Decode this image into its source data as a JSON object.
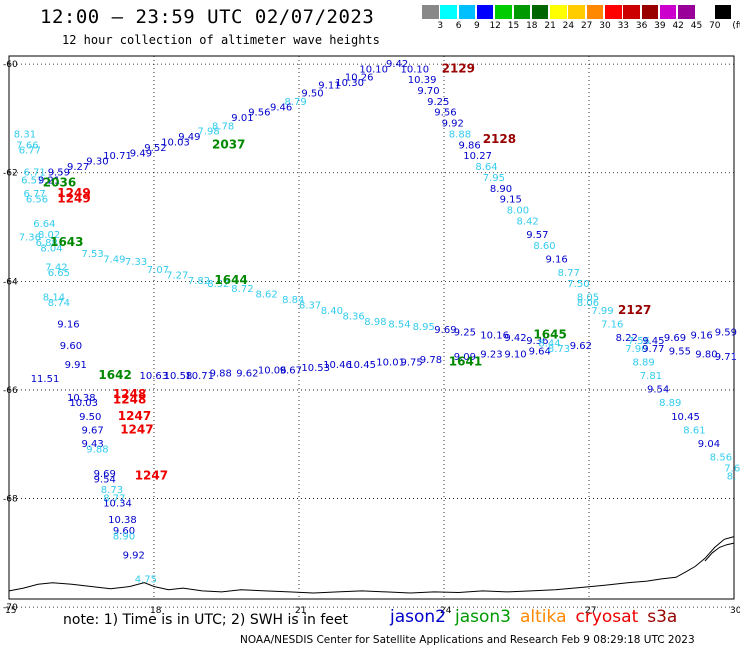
{
  "header": {
    "title": "12:00 – 23:59 UTC 02/07/2023",
    "subtitle": "12 hour collection of altimeter wave heights"
  },
  "colorbar": {
    "unit": "(ft)",
    "colors": [
      "#888888",
      "#00ffff",
      "#00bfff",
      "#0000ff",
      "#00cc00",
      "#009900",
      "#006600",
      "#ffff00",
      "#ffcc00",
      "#ff8800",
      "#ff0000",
      "#cc0000",
      "#990000",
      "#cc00cc",
      "#990099",
      "#ffffff",
      "#000000"
    ],
    "labels": [
      "3",
      "6",
      "9",
      "12",
      "15",
      "18",
      "21",
      "24",
      "27",
      "30",
      "33",
      "36",
      "39",
      "42",
      "45",
      "70"
    ]
  },
  "map": {
    "lat_ticks": [
      "-60",
      "-62",
      "-64",
      "-66",
      "-68",
      "-70"
    ],
    "lon_ticks": [
      "15",
      "18",
      "21",
      "24",
      "27",
      "30"
    ]
  },
  "observations": [
    {
      "t": "9.42",
      "c": "#0000cc",
      "lon": 22.8,
      "lat": -60.05
    },
    {
      "t": "10.10",
      "c": "#0000cc",
      "lon": 22.25,
      "lat": -60.15
    },
    {
      "t": "10.10",
      "c": "#0000cc",
      "lon": 23.1,
      "lat": -60.15
    },
    {
      "t": "10.26",
      "c": "#0000cc",
      "lon": 21.95,
      "lat": -60.3
    },
    {
      "t": "10.39",
      "c": "#0000cc",
      "lon": 23.25,
      "lat": -60.35
    },
    {
      "t": "10.30",
      "c": "#0000cc",
      "lon": 21.75,
      "lat": -60.4
    },
    {
      "t": "9.11",
      "c": "#0000cc",
      "lon": 21.4,
      "lat": -60.45
    },
    {
      "t": "9.70",
      "c": "#0000cc",
      "lon": 23.45,
      "lat": -60.55
    },
    {
      "t": "9.50",
      "c": "#0000cc",
      "lon": 21.05,
      "lat": -60.6
    },
    {
      "t": "8.79",
      "c": "#33ccee",
      "lon": 20.7,
      "lat": -60.75
    },
    {
      "t": "9.25",
      "c": "#0000cc",
      "lon": 23.65,
      "lat": -60.75
    },
    {
      "t": "9.46",
      "c": "#0000cc",
      "lon": 20.4,
      "lat": -60.85
    },
    {
      "t": "9.56",
      "c": "#0000cc",
      "lon": 19.95,
      "lat": -60.95
    },
    {
      "t": "9.56",
      "c": "#0000cc",
      "lon": 23.8,
      "lat": -60.95
    },
    {
      "t": "9.01",
      "c": "#0000cc",
      "lon": 19.6,
      "lat": -61.05
    },
    {
      "t": "9.92",
      "c": "#0000cc",
      "lon": 23.95,
      "lat": -61.15
    },
    {
      "t": "8.78",
      "c": "#33ccee",
      "lon": 19.2,
      "lat": -61.2
    },
    {
      "t": "7.98",
      "c": "#33ccee",
      "lon": 18.9,
      "lat": -61.3
    },
    {
      "t": "8.88",
      "c": "#33ccee",
      "lon": 24.1,
      "lat": -61.35
    },
    {
      "t": "9.49",
      "c": "#0000cc",
      "lon": 18.5,
      "lat": -61.4
    },
    {
      "t": "10.03",
      "c": "#0000cc",
      "lon": 18.15,
      "lat": -61.5
    },
    {
      "t": "9.86",
      "c": "#0000cc",
      "lon": 24.3,
      "lat": -61.55
    },
    {
      "t": "9.52",
      "c": "#0000cc",
      "lon": 17.8,
      "lat": -61.6
    },
    {
      "t": "9.49",
      "c": "#0000cc",
      "lon": 17.5,
      "lat": -61.7
    },
    {
      "t": "10.27",
      "c": "#0000cc",
      "lon": 24.4,
      "lat": -61.75
    },
    {
      "t": "10.71",
      "c": "#0000cc",
      "lon": 16.95,
      "lat": -61.75
    },
    {
      "t": "9.30",
      "c": "#0000cc",
      "lon": 16.6,
      "lat": -61.85
    },
    {
      "t": "8.64",
      "c": "#33ccee",
      "lon": 24.65,
      "lat": -61.95
    },
    {
      "t": "9.27",
      "c": "#0000cc",
      "lon": 16.2,
      "lat": -61.95
    },
    {
      "t": "9.59",
      "c": "#0000cc",
      "lon": 15.8,
      "lat": -62.05
    },
    {
      "t": "7.95",
      "c": "#33ccee",
      "lon": 24.8,
      "lat": -62.15
    },
    {
      "t": "8.90",
      "c": "#0000cc",
      "lon": 24.95,
      "lat": -62.35
    },
    {
      "t": "9.15",
      "c": "#0000cc",
      "lon": 25.15,
      "lat": -62.55
    },
    {
      "t": "8.00",
      "c": "#33ccee",
      "lon": 25.3,
      "lat": -62.75
    },
    {
      "t": "8.42",
      "c": "#33ccee",
      "lon": 25.5,
      "lat": -62.95
    },
    {
      "t": "9.57",
      "c": "#0000cc",
      "lon": 25.7,
      "lat": -63.2
    },
    {
      "t": "8.60",
      "c": "#33ccee",
      "lon": 25.85,
      "lat": -63.4
    },
    {
      "t": "9.16",
      "c": "#0000cc",
      "lon": 26.1,
      "lat": -63.65
    },
    {
      "t": "8.77",
      "c": "#33ccee",
      "lon": 26.35,
      "lat": -63.9
    },
    {
      "t": "7.50",
      "c": "#33ccee",
      "lon": 26.55,
      "lat": -64.1
    },
    {
      "t": "8.05",
      "c": "#33ccee",
      "lon": 26.75,
      "lat": -64.35
    },
    {
      "t": "8.06",
      "c": "#33ccee",
      "lon": 26.75,
      "lat": -64.45
    },
    {
      "t": "7.99",
      "c": "#33ccee",
      "lon": 27.05,
      "lat": -64.6
    },
    {
      "t": "7.16",
      "c": "#33ccee",
      "lon": 27.25,
      "lat": -64.85
    },
    {
      "t": "8.22",
      "c": "#0000cc",
      "lon": 27.55,
      "lat": -65.1
    },
    {
      "t": "7.56",
      "c": "#33ccee",
      "lon": 27.8,
      "lat": -65.15
    },
    {
      "t": "7.90",
      "c": "#33ccee",
      "lon": 27.75,
      "lat": -65.3
    },
    {
      "t": "8.89",
      "c": "#33ccee",
      "lon": 27.9,
      "lat": -65.55
    },
    {
      "t": "7.81",
      "c": "#33ccee",
      "lon": 28.05,
      "lat": -65.8
    },
    {
      "t": "9.54",
      "c": "#0000cc",
      "lon": 28.2,
      "lat": -66.05
    },
    {
      "t": "8.89",
      "c": "#33ccee",
      "lon": 28.45,
      "lat": -66.3
    },
    {
      "t": "10.45",
      "c": "#0000cc",
      "lon": 28.7,
      "lat": -66.55
    },
    {
      "t": "8.61",
      "c": "#33ccee",
      "lon": 28.95,
      "lat": -66.8
    },
    {
      "t": "9.04",
      "c": "#0000cc",
      "lon": 29.25,
      "lat": -67.05
    },
    {
      "t": "8.56",
      "c": "#33ccee",
      "lon": 29.5,
      "lat": -67.3
    },
    {
      "t": "7.6",
      "c": "#33ccee",
      "lon": 29.8,
      "lat": -67.5
    },
    {
      "t": "8.",
      "c": "#33ccee",
      "lon": 29.85,
      "lat": -67.65
    },
    {
      "t": "8.31",
      "c": "#33ccee",
      "lon": 15.1,
      "lat": -61.35
    },
    {
      "t": "7.66",
      "c": "#33ccee",
      "lon": 15.15,
      "lat": -61.55
    },
    {
      "t": "6.77",
      "c": "#33ccee",
      "lon": 15.2,
      "lat": -61.65
    },
    {
      "t": "6.71",
      "c": "#33ccee",
      "lon": 15.3,
      "lat": -62.05
    },
    {
      "t": "6.57",
      "c": "#33ccee",
      "lon": 15.25,
      "lat": -62.2
    },
    {
      "t": "9.21",
      "c": "#0000cc",
      "lon": 15.6,
      "lat": -62.2
    },
    {
      "t": "6.77",
      "c": "#33ccee",
      "lon": 15.3,
      "lat": -62.45
    },
    {
      "t": "6.56",
      "c": "#33ccee",
      "lon": 15.35,
      "lat": -62.55
    },
    {
      "t": "6.64",
      "c": "#33ccee",
      "lon": 15.5,
      "lat": -63.0
    },
    {
      "t": "7.36",
      "c": "#33ccee",
      "lon": 15.2,
      "lat": -63.25
    },
    {
      "t": "8.02",
      "c": "#33ccee",
      "lon": 15.6,
      "lat": -63.2
    },
    {
      "t": "6.88",
      "c": "#33ccee",
      "lon": 15.55,
      "lat": -63.35
    },
    {
      "t": "8.04",
      "c": "#33ccee",
      "lon": 15.65,
      "lat": -63.45
    },
    {
      "t": "7.53",
      "c": "#33ccee",
      "lon": 16.5,
      "lat": -63.55
    },
    {
      "t": "7.49",
      "c": "#33ccee",
      "lon": 16.95,
      "lat": -63.65
    },
    {
      "t": "7.33",
      "c": "#33ccee",
      "lon": 17.4,
      "lat": -63.7
    },
    {
      "t": "7.42",
      "c": "#33ccee",
      "lon": 15.75,
      "lat": -63.8
    },
    {
      "t": "6.65",
      "c": "#33ccee",
      "lon": 15.8,
      "lat": -63.9
    },
    {
      "t": "7.07",
      "c": "#33ccee",
      "lon": 17.85,
      "lat": -63.85
    },
    {
      "t": "7.27",
      "c": "#33ccee",
      "lon": 18.25,
      "lat": -63.95
    },
    {
      "t": "7.82",
      "c": "#33ccee",
      "lon": 18.7,
      "lat": -64.05
    },
    {
      "t": "8.52",
      "c": "#33ccee",
      "lon": 19.1,
      "lat": -64.1
    },
    {
      "t": "8.72",
      "c": "#33ccee",
      "lon": 19.6,
      "lat": -64.2
    },
    {
      "t": "8.62",
      "c": "#33ccee",
      "lon": 20.1,
      "lat": -64.3
    },
    {
      "t": "8.84",
      "c": "#33ccee",
      "lon": 20.65,
      "lat": -64.4
    },
    {
      "t": "8.37",
      "c": "#33ccee",
      "lon": 21.0,
      "lat": -64.5
    },
    {
      "t": "8.40",
      "c": "#33ccee",
      "lon": 21.45,
      "lat": -64.6
    },
    {
      "t": "8.36",
      "c": "#33ccee",
      "lon": 21.9,
      "lat": -64.7
    },
    {
      "t": "8.98",
      "c": "#33ccee",
      "lon": 22.35,
      "lat": -64.8
    },
    {
      "t": "8.54",
      "c": "#33ccee",
      "lon": 22.85,
      "lat": -64.85
    },
    {
      "t": "8.95",
      "c": "#33ccee",
      "lon": 23.35,
      "lat": -64.9
    },
    {
      "t": "9.69",
      "c": "#0000cc",
      "lon": 23.8,
      "lat": -64.95
    },
    {
      "t": "9.25",
      "c": "#0000cc",
      "lon": 24.2,
      "lat": -65.0
    },
    {
      "t": "10.16",
      "c": "#0000cc",
      "lon": 24.75,
      "lat": -65.05
    },
    {
      "t": "9.42",
      "c": "#0000cc",
      "lon": 25.25,
      "lat": -65.1
    },
    {
      "t": "9.36",
      "c": "#0000cc",
      "lon": 25.7,
      "lat": -65.15
    },
    {
      "t": "8.44",
      "c": "#33ccee",
      "lon": 25.95,
      "lat": -65.2
    },
    {
      "t": "9.62",
      "c": "#0000cc",
      "lon": 26.6,
      "lat": -65.25
    },
    {
      "t": "9.45",
      "c": "#0000cc",
      "lon": 28.1,
      "lat": -65.15
    },
    {
      "t": "9.69",
      "c": "#0000cc",
      "lon": 28.55,
      "lat": -65.1
    },
    {
      "t": "9.16",
      "c": "#0000cc",
      "lon": 29.1,
      "lat": -65.05
    },
    {
      "t": "9.59",
      "c": "#0000cc",
      "lon": 29.6,
      "lat": -65.0
    },
    {
      "t": "8.14",
      "c": "#33ccee",
      "lon": 15.7,
      "lat": -64.35
    },
    {
      "t": "8.74",
      "c": "#33ccee",
      "lon": 15.8,
      "lat": -64.45
    },
    {
      "t": "9.16",
      "c": "#0000cc",
      "lon": 16.0,
      "lat": -64.85
    },
    {
      "t": "9.60",
      "c": "#0000cc",
      "lon": 16.05,
      "lat": -65.25
    },
    {
      "t": "9.91",
      "c": "#0000cc",
      "lon": 16.15,
      "lat": -65.6
    },
    {
      "t": "11.51",
      "c": "#0000cc",
      "lon": 15.45,
      "lat": -65.85
    },
    {
      "t": "10.63",
      "c": "#0000cc",
      "lon": 17.7,
      "lat": -65.8
    },
    {
      "t": "10.58",
      "c": "#0000cc",
      "lon": 18.2,
      "lat": -65.8
    },
    {
      "t": "10.71",
      "c": "#0000cc",
      "lon": 18.65,
      "lat": -65.8
    },
    {
      "t": "9.88",
      "c": "#0000cc",
      "lon": 19.15,
      "lat": -65.75
    },
    {
      "t": "9.62",
      "c": "#0000cc",
      "lon": 19.7,
      "lat": -65.75
    },
    {
      "t": "10.06",
      "c": "#0000cc",
      "lon": 20.15,
      "lat": -65.7
    },
    {
      "t": "9.67",
      "c": "#0000cc",
      "lon": 20.6,
      "lat": -65.7
    },
    {
      "t": "10.53",
      "c": "#0000cc",
      "lon": 21.05,
      "lat": -65.65
    },
    {
      "t": "10.46",
      "c": "#0000cc",
      "lon": 21.5,
      "lat": -65.6
    },
    {
      "t": "10.45",
      "c": "#0000cc",
      "lon": 22.0,
      "lat": -65.6
    },
    {
      "t": "10.01",
      "c": "#0000cc",
      "lon": 22.6,
      "lat": -65.55
    },
    {
      "t": "9.75",
      "c": "#0000cc",
      "lon": 23.1,
      "lat": -65.55
    },
    {
      "t": "9.78",
      "c": "#0000cc",
      "lon": 23.5,
      "lat": -65.5
    },
    {
      "t": "9.09",
      "c": "#0000cc",
      "lon": 24.2,
      "lat": -65.45
    },
    {
      "t": "9.23",
      "c": "#0000cc",
      "lon": 24.75,
      "lat": -65.4
    },
    {
      "t": "9.10",
      "c": "#0000cc",
      "lon": 25.25,
      "lat": -65.4
    },
    {
      "t": "9.64",
      "c": "#0000cc",
      "lon": 25.75,
      "lat": -65.35
    },
    {
      "t": "8.73",
      "c": "#33ccee",
      "lon": 26.15,
      "lat": -65.3
    },
    {
      "t": "9.77",
      "c": "#0000cc",
      "lon": 28.1,
      "lat": -65.3
    },
    {
      "t": "9.55",
      "c": "#0000cc",
      "lon": 28.65,
      "lat": -65.35
    },
    {
      "t": "9.80",
      "c": "#0000cc",
      "lon": 29.2,
      "lat": -65.4
    },
    {
      "t": "9.71",
      "c": "#0000cc",
      "lon": 29.6,
      "lat": -65.45
    },
    {
      "t": "10.38",
      "c": "#0000cc",
      "lon": 16.2,
      "lat": -66.2
    },
    {
      "t": "10.03",
      "c": "#0000cc",
      "lon": 16.25,
      "lat": -66.3
    },
    {
      "t": "9.50",
      "c": "#0000cc",
      "lon": 16.45,
      "lat": -66.55
    },
    {
      "t": "9.67",
      "c": "#0000cc",
      "lon": 16.5,
      "lat": -66.8
    },
    {
      "t": "9.43",
      "c": "#0000cc",
      "lon": 16.5,
      "lat": -67.05
    },
    {
      "t": "9.88",
      "c": "#33ccee",
      "lon": 16.6,
      "lat": -67.15
    },
    {
      "t": "9.69",
      "c": "#0000cc",
      "lon": 16.75,
      "lat": -67.6
    },
    {
      "t": "9.54",
      "c": "#0000cc",
      "lon": 16.75,
      "lat": -67.7
    },
    {
      "t": "8.73",
      "c": "#33ccee",
      "lon": 16.9,
      "lat": -67.9
    },
    {
      "t": "8.77",
      "c": "#33ccee",
      "lon": 16.95,
      "lat": -68.05
    },
    {
      "t": "10.34",
      "c": "#0000cc",
      "lon": 16.95,
      "lat": -68.15
    },
    {
      "t": "10.38",
      "c": "#0000cc",
      "lon": 17.05,
      "lat": -68.45
    },
    {
      "t": "9.60",
      "c": "#0000cc",
      "lon": 17.15,
      "lat": -68.65
    },
    {
      "t": "8.90",
      "c": "#33ccee",
      "lon": 17.15,
      "lat": -68.75
    },
    {
      "t": "9.92",
      "c": "#0000cc",
      "lon": 17.35,
      "lat": -69.1
    },
    {
      "t": "4.75",
      "c": "#33ccee",
      "lon": 17.6,
      "lat": -69.55
    }
  ],
  "passes": [
    {
      "t": "2129",
      "c": "#990000",
      "lon": 23.95,
      "lat": -60.15
    },
    {
      "t": "2128",
      "c": "#990000",
      "lon": 24.8,
      "lat": -61.45
    },
    {
      "t": "2127",
      "c": "#990000",
      "lon": 27.6,
      "lat": -64.6
    },
    {
      "t": "2037",
      "c": "#008800",
      "lon": 19.2,
      "lat": -61.55
    },
    {
      "t": "2036",
      "c": "#008800",
      "lon": 15.7,
      "lat": -62.25
    },
    {
      "t": "1249",
      "c": "#ee0000",
      "lon": 16.0,
      "lat": -62.45
    },
    {
      "t": "1249",
      "c": "#ee0000",
      "lon": 16.0,
      "lat": -62.55
    },
    {
      "t": "1643",
      "c": "#008800",
      "lon": 15.85,
      "lat": -63.35
    },
    {
      "t": "1644",
      "c": "#008800",
      "lon": 19.25,
      "lat": -64.05
    },
    {
      "t": "1645",
      "c": "#008800",
      "lon": 25.85,
      "lat": -65.05
    },
    {
      "t": "1642",
      "c": "#008800",
      "lon": 16.85,
      "lat": -65.8
    },
    {
      "t": "1641",
      "c": "#008800",
      "lon": 24.1,
      "lat": -65.55
    },
    {
      "t": "1248",
      "c": "#ee0000",
      "lon": 17.15,
      "lat": -66.15
    },
    {
      "t": "1248",
      "c": "#ee0000",
      "lon": 17.15,
      "lat": -66.25
    },
    {
      "t": "1247",
      "c": "#ee0000",
      "lon": 17.25,
      "lat": -66.55
    },
    {
      "t": "1247",
      "c": "#ee0000",
      "lon": 17.3,
      "lat": -66.8
    },
    {
      "t": "1247",
      "c": "#ee0000",
      "lon": 17.6,
      "lat": -67.65
    }
  ],
  "coastline": [
    [
      15.0,
      -69.7
    ],
    [
      15.3,
      -69.65
    ],
    [
      15.6,
      -69.58
    ],
    [
      15.9,
      -69.55
    ],
    [
      16.3,
      -69.58
    ],
    [
      16.7,
      -69.62
    ],
    [
      17.1,
      -69.66
    ],
    [
      17.5,
      -69.62
    ],
    [
      17.8,
      -69.55
    ],
    [
      18.0,
      -69.62
    ],
    [
      18.3,
      -69.68
    ],
    [
      18.6,
      -69.65
    ],
    [
      19.0,
      -69.7
    ],
    [
      19.4,
      -69.72
    ],
    [
      19.8,
      -69.68
    ],
    [
      20.3,
      -69.7
    ],
    [
      20.8,
      -69.72
    ],
    [
      21.3,
      -69.74
    ],
    [
      21.8,
      -69.72
    ],
    [
      22.3,
      -69.7
    ],
    [
      22.8,
      -69.72
    ],
    [
      23.3,
      -69.74
    ],
    [
      23.8,
      -69.72
    ],
    [
      24.3,
      -69.73
    ],
    [
      24.8,
      -69.7
    ],
    [
      25.3,
      -69.72
    ],
    [
      25.8,
      -69.7
    ],
    [
      26.3,
      -69.68
    ],
    [
      26.8,
      -69.64
    ],
    [
      27.3,
      -69.6
    ],
    [
      27.8,
      -69.55
    ],
    [
      28.2,
      -69.52
    ],
    [
      28.5,
      -69.48
    ],
    [
      28.8,
      -69.45
    ],
    [
      29.0,
      -69.35
    ],
    [
      29.2,
      -69.25
    ],
    [
      29.4,
      -69.1
    ],
    [
      29.6,
      -68.9
    ],
    [
      29.8,
      -68.75
    ],
    [
      30.0,
      -68.7
    ]
  ],
  "coastline2": [
    [
      29.4,
      -69.15
    ],
    [
      29.55,
      -69.0
    ],
    [
      29.7,
      -68.9
    ],
    [
      29.85,
      -68.85
    ],
    [
      30.0,
      -68.82
    ]
  ],
  "footer": {
    "note": "note: 1) Time is in UTC; 2) SWH is in feet",
    "satellites": [
      {
        "name": "jason2",
        "color": "#0000cc"
      },
      {
        "name": "jason3",
        "color": "#009900"
      },
      {
        "name": "altika",
        "color": "#ff8800"
      },
      {
        "name": "cryosat",
        "color": "#ee0000"
      },
      {
        "name": "s3a",
        "color": "#990000"
      }
    ],
    "credit": "NOAA/NESDIS Center for Satellite Applications and Research   Feb  9 08:29:18 UTC 2023"
  }
}
